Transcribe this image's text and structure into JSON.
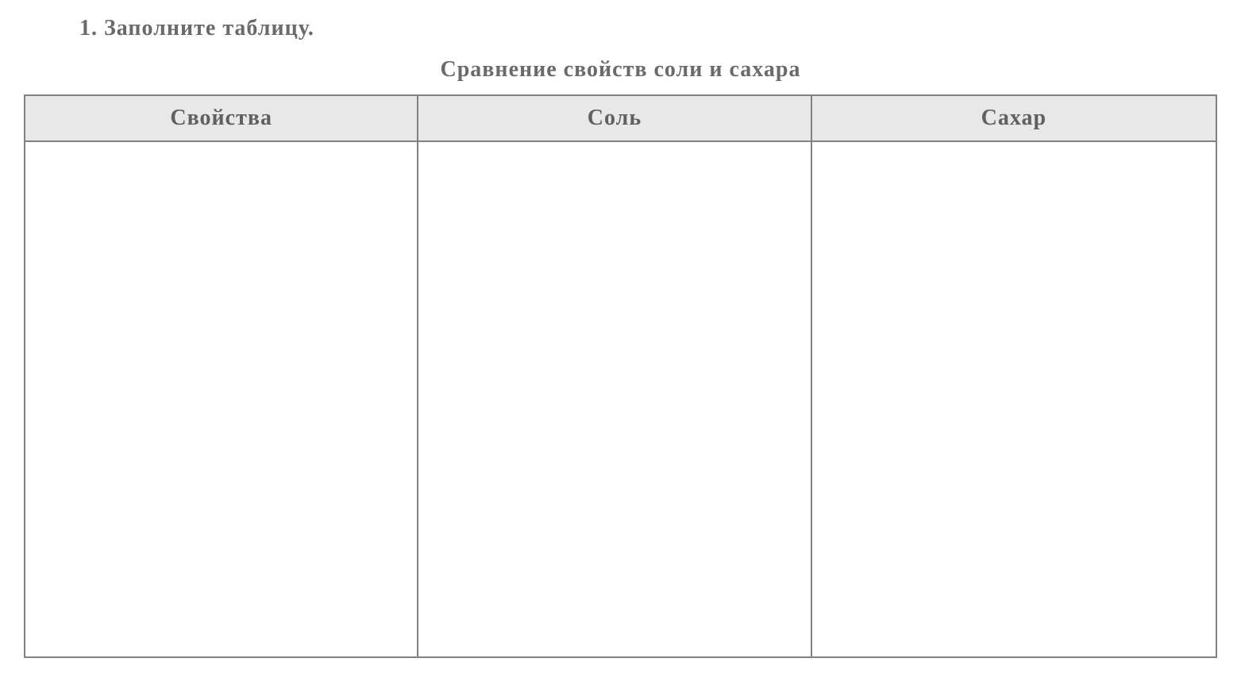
{
  "instruction": "1. Заполните таблицу.",
  "table": {
    "title": "Сравнение свойств соли и сахара",
    "columns": [
      "Свойства",
      "Соль",
      "Сахар"
    ],
    "rows": [
      [
        "",
        "",
        ""
      ]
    ],
    "column_widths": [
      "33%",
      "33%",
      "34%"
    ],
    "header_bg_color": "#e8e8e8",
    "border_color": "#808080",
    "text_color": "#6a6a6a",
    "header_fontsize": 28,
    "body_row_height": 650
  },
  "styling": {
    "background_color": "#ffffff",
    "instruction_fontsize": 28,
    "title_fontsize": 28,
    "font_family": "Georgia, serif"
  }
}
